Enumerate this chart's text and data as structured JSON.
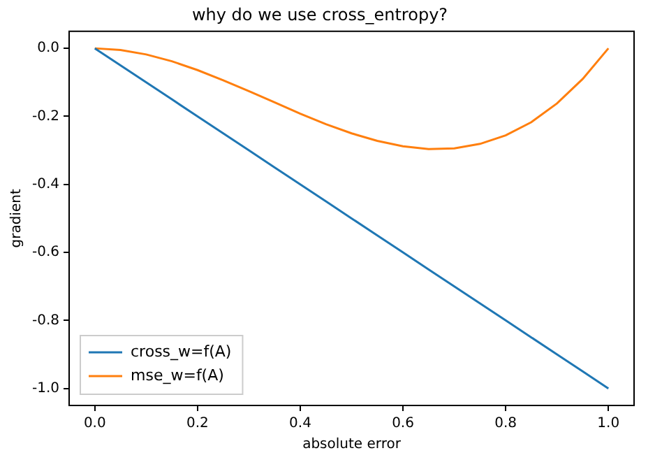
{
  "chart_data": {
    "type": "line",
    "title": "why do we use cross_entropy?",
    "xlabel": "absolute error",
    "ylabel": "gradient",
    "x": [
      0,
      0.05,
      0.1,
      0.15,
      0.2,
      0.25,
      0.3,
      0.35,
      0.4,
      0.45,
      0.5,
      0.55,
      0.6,
      0.65,
      0.7,
      0.75,
      0.8,
      0.85,
      0.9,
      0.95,
      1.0
    ],
    "series": [
      {
        "name": "cross_w=f(A)",
        "color": "#1f77b4",
        "values": [
          0,
          -0.05,
          -0.1,
          -0.15,
          -0.2,
          -0.25,
          -0.3,
          -0.35,
          -0.4,
          -0.45,
          -0.5,
          -0.55,
          -0.6,
          -0.65,
          -0.7,
          -0.75,
          -0.8,
          -0.85,
          -0.9,
          -0.95,
          -1.0
        ]
      },
      {
        "name": "mse_w=f(A)",
        "color": "#ff7f0e",
        "values": [
          0,
          -0.005,
          -0.018,
          -0.038,
          -0.064,
          -0.094,
          -0.126,
          -0.159,
          -0.192,
          -0.223,
          -0.25,
          -0.272,
          -0.288,
          -0.296,
          -0.294,
          -0.281,
          -0.256,
          -0.217,
          -0.162,
          -0.09,
          0
        ]
      }
    ],
    "xlim": [
      -0.05,
      1.05
    ],
    "xticks": [
      {
        "value": 0,
        "label": "0.0"
      },
      {
        "value": 0.2,
        "label": "0.2"
      },
      {
        "value": 0.4,
        "label": "0.4"
      },
      {
        "value": 0.6,
        "label": "0.6"
      },
      {
        "value": 0.8,
        "label": "0.8"
      },
      {
        "value": 1,
        "label": "1.0"
      }
    ],
    "ylim": [
      -1.05,
      0.05
    ],
    "yticks": [
      {
        "value": 0,
        "label": "0.0"
      },
      {
        "value": -0.2,
        "label": "-0.2"
      },
      {
        "value": -0.4,
        "label": "-0.4"
      },
      {
        "value": -0.6,
        "label": "-0.6"
      },
      {
        "value": -0.8,
        "label": "-0.8"
      },
      {
        "value": -1,
        "label": "-1.0"
      }
    ],
    "grid": false,
    "legend": "bottom left",
    "marker": "none",
    "line_style": "solid"
  }
}
